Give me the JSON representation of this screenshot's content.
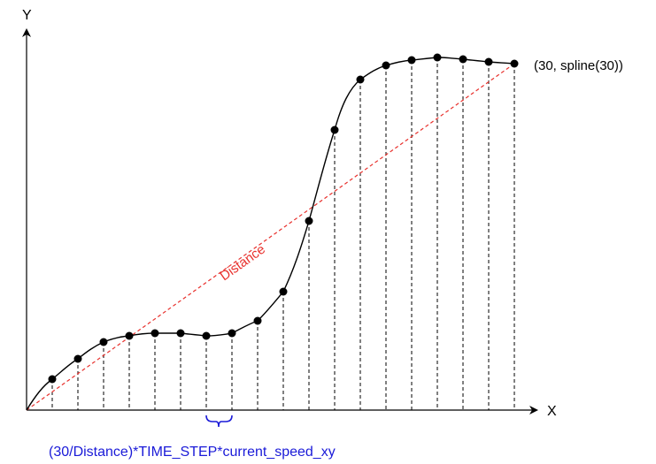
{
  "diagram": {
    "y_axis_label": "Y",
    "x_axis_label": "X",
    "endpoint_label": "(30, spline(30))",
    "distance_label": "Distance",
    "formula_label": "(30/Distance)*TIME_STEP*current_speed_xy",
    "colors": {
      "curve": "#000000",
      "distance_line": "#e8302c",
      "formula": "#1a1ad8",
      "sample_lines": "#000000"
    },
    "sample_point_count": 19
  }
}
